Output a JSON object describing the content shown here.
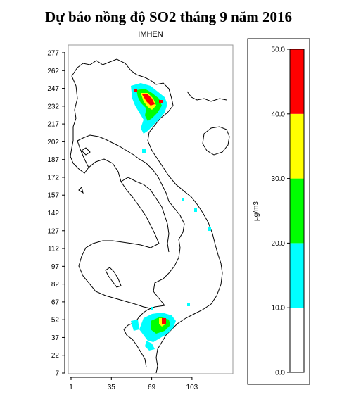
{
  "title": "Dự báo nồng độ SO2 tháng 9 năm 2016",
  "subtitle": "IMHEN",
  "map": {
    "y_ticks": [
      "277",
      "262",
      "247",
      "232",
      "217",
      "202",
      "187",
      "172",
      "157",
      "142",
      "127",
      "112",
      "97",
      "82",
      "67",
      "52",
      "37",
      "22",
      "7"
    ],
    "x_ticks": [
      "1",
      "35",
      "69",
      "103"
    ]
  },
  "legend": {
    "unit": "µg/m3",
    "ticks": [
      "50.0",
      "40.0",
      "30.0",
      "20.0",
      "10.0",
      "0.0"
    ],
    "bins": [
      {
        "from": 0,
        "to": 10,
        "color": "#ffffff"
      },
      {
        "from": 10,
        "to": 20,
        "color": "#00ffff"
      },
      {
        "from": 20,
        "to": 30,
        "color": "#00ff00"
      },
      {
        "from": 30,
        "to": 40,
        "color": "#ffff00"
      },
      {
        "from": 40,
        "to": 50,
        "color": "#ff0000"
      }
    ]
  }
}
